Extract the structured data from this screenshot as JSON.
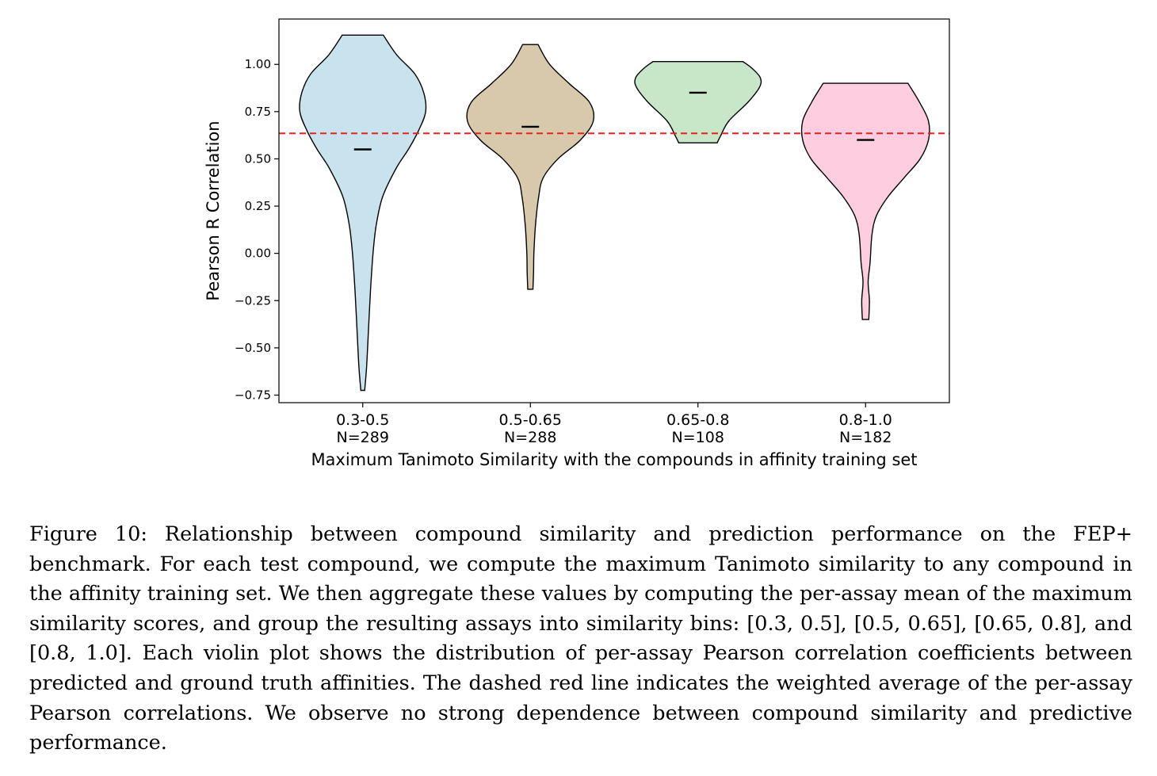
{
  "chart_data": {
    "type": "violin",
    "xlabel": "Maximum Tanimoto Similarity with the compounds in affinity training set",
    "ylabel": "Pearson R Correlation",
    "ylim": [
      -0.79,
      1.24
    ],
    "yticks": [
      -0.75,
      -0.5,
      -0.25,
      0.0,
      0.25,
      0.5,
      0.75,
      1.0
    ],
    "ytick_labels": [
      "−0.75",
      "−0.50",
      "−0.25",
      "0.00",
      "0.25",
      "0.50",
      "0.75",
      "1.00"
    ],
    "grid": false,
    "reference_line": {
      "value": 0.635,
      "style": "dashed",
      "color": "#e8221c"
    },
    "categories": [
      {
        "label": "0.3-0.5",
        "n_label": "N=289",
        "color": "#c9e3ee",
        "min": -0.725,
        "max": 1.155,
        "mean": 0.55,
        "profile": [
          [
            -0.725,
            0.03
          ],
          [
            -0.6,
            0.06
          ],
          [
            -0.4,
            0.09
          ],
          [
            -0.2,
            0.12
          ],
          [
            0.0,
            0.16
          ],
          [
            0.15,
            0.21
          ],
          [
            0.3,
            0.31
          ],
          [
            0.45,
            0.52
          ],
          [
            0.55,
            0.71
          ],
          [
            0.65,
            0.87
          ],
          [
            0.75,
            0.98
          ],
          [
            0.85,
            0.95
          ],
          [
            0.95,
            0.81
          ],
          [
            1.05,
            0.53
          ],
          [
            1.155,
            0.32
          ]
        ]
      },
      {
        "label": "0.5-0.65",
        "n_label": "N=288",
        "color": "#d9c9ac",
        "min": -0.19,
        "max": 1.105,
        "mean": 0.67,
        "profile": [
          [
            -0.19,
            0.04
          ],
          [
            -0.1,
            0.05
          ],
          [
            0.0,
            0.055
          ],
          [
            0.15,
            0.08
          ],
          [
            0.3,
            0.13
          ],
          [
            0.4,
            0.2
          ],
          [
            0.5,
            0.43
          ],
          [
            0.6,
            0.78
          ],
          [
            0.7,
            0.98
          ],
          [
            0.8,
            0.92
          ],
          [
            0.9,
            0.6
          ],
          [
            1.0,
            0.3
          ],
          [
            1.105,
            0.12
          ]
        ]
      },
      {
        "label": "0.65-0.8",
        "n_label": "N=108",
        "color": "#c8e6c8",
        "min": 0.585,
        "max": 1.015,
        "mean": 0.85,
        "profile": [
          [
            0.585,
            0.3
          ],
          [
            0.62,
            0.35
          ],
          [
            0.7,
            0.48
          ],
          [
            0.8,
            0.78
          ],
          [
            0.88,
            0.96
          ],
          [
            0.93,
            0.97
          ],
          [
            0.98,
            0.84
          ],
          [
            1.015,
            0.7
          ]
        ]
      },
      {
        "label": "0.8-1.0",
        "n_label": "N=182",
        "color": "#fecde0",
        "min": -0.35,
        "max": 0.9,
        "mean": 0.6,
        "profile": [
          [
            -0.35,
            0.05
          ],
          [
            -0.25,
            0.06
          ],
          [
            -0.15,
            0.04
          ],
          [
            -0.05,
            0.07
          ],
          [
            0.1,
            0.1
          ],
          [
            0.2,
            0.17
          ],
          [
            0.3,
            0.35
          ],
          [
            0.4,
            0.6
          ],
          [
            0.5,
            0.85
          ],
          [
            0.6,
            0.98
          ],
          [
            0.7,
            0.98
          ],
          [
            0.8,
            0.84
          ],
          [
            0.9,
            0.66
          ]
        ]
      }
    ]
  },
  "caption": "Figure 10: Relationship between compound similarity and prediction performance on the FEP+ benchmark. For each test compound, we compute the maximum Tanimoto similarity to any compound in the affinity training set. We then aggregate these values by computing the per-assay mean of the maximum similarity scores, and group the resulting assays into similarity bins: [0.3, 0.5], [0.5, 0.65], [0.65, 0.8], and [0.8, 1.0]. Each violin plot shows the distribution of per-assay Pearson correlation coefficients between predicted and ground truth affinities. The dashed red line indicates the weighted average of the per-assay Pearson correlations. We observe no strong dependence between compound similarity and predictive performance."
}
